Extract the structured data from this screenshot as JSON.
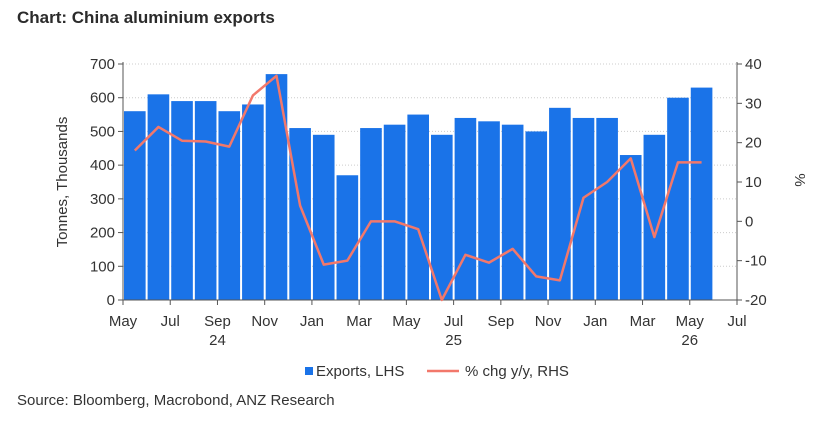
{
  "title": "Chart: China aluminium exports",
  "source": "Source: Bloomberg, Macrobond, ANZ Research",
  "colors": {
    "bars": "#1a73e8",
    "line": "#f2786b",
    "grid": "#cccccc",
    "axis": "#555555"
  },
  "chart_data": {
    "type": "bar",
    "title": "Chart: China aluminium exports",
    "ylabel": "Tonnes, Thousands",
    "y2label": "%",
    "ylim": [
      0,
      700
    ],
    "y2lim": [
      -20,
      40
    ],
    "yticks": [
      "0",
      "100",
      "200",
      "300",
      "400",
      "500",
      "600",
      "700"
    ],
    "y2ticks": [
      "-20",
      "-10",
      "0",
      "10",
      "20",
      "30",
      "40"
    ],
    "xticks": [
      "May",
      "Jul",
      "Sep",
      "Nov",
      "Jan",
      "Mar",
      "May",
      "Jul",
      "Sep",
      "Nov",
      "Jan",
      "Mar",
      "May",
      "Jul"
    ],
    "year_labels": [
      {
        "label": "24",
        "under_tick": 2
      },
      {
        "label": "25",
        "under_tick": 7
      },
      {
        "label": "26",
        "under_tick": 12
      }
    ],
    "categories": [
      "May 24",
      "Jun 24",
      "Jul 24",
      "Aug 24",
      "Sep 24",
      "Oct 24",
      "Nov 24",
      "Dec 24",
      "Jan 25",
      "Feb 25",
      "Mar 25",
      "Apr 25",
      "May 25",
      "Jun 25",
      "Jul 25",
      "Aug 25",
      "Sep 25",
      "Oct 25",
      "Nov 25",
      "Dec 25",
      "Jan 26",
      "Feb 26",
      "Mar 26",
      "Apr 26",
      "May 26"
    ],
    "series": [
      {
        "name": "Exports, LHS",
        "axis": "left",
        "type": "bar",
        "values": [
          560,
          610,
          590,
          590,
          560,
          580,
          670,
          510,
          490,
          370,
          510,
          520,
          550,
          490,
          540,
          530,
          520,
          500,
          570,
          540,
          540,
          430,
          490,
          600,
          630
        ]
      },
      {
        "name": "% chg y/y, RHS",
        "axis": "right",
        "type": "line",
        "values": [
          18,
          24,
          20.5,
          20.3,
          19,
          32,
          37,
          4,
          -11,
          -10,
          0,
          0,
          -2,
          -20,
          -8.5,
          -10.5,
          -7,
          -14,
          -15,
          6,
          10,
          16,
          -4,
          15,
          15
        ]
      }
    ],
    "legend_position": "bottom",
    "grid": true
  }
}
